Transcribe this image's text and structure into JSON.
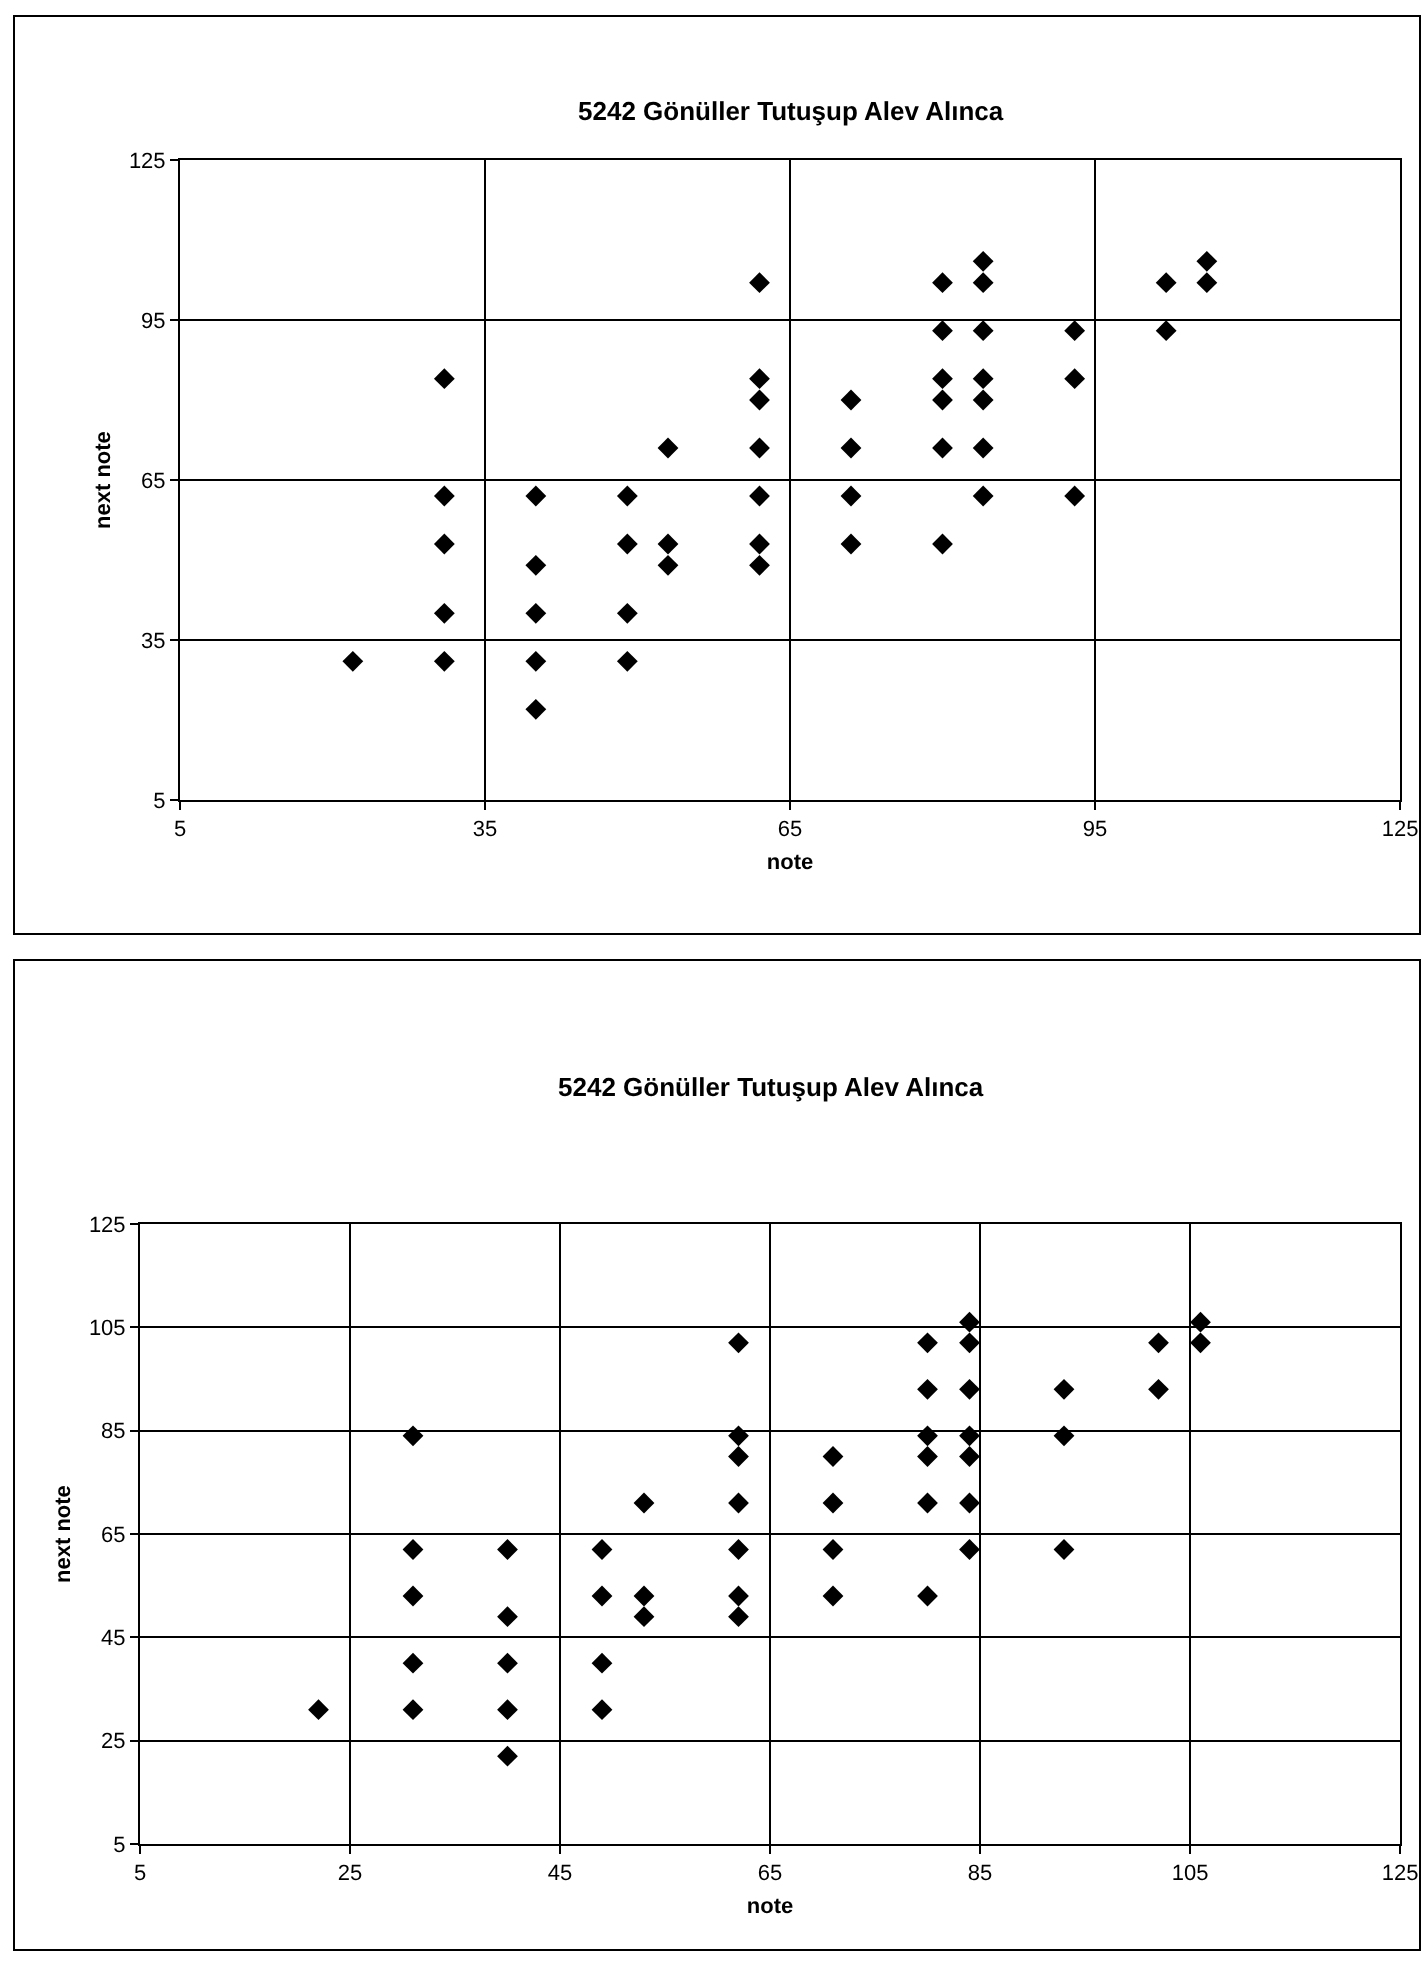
{
  "chart_data": [
    {
      "type": "scatter",
      "title": "5242 Gönüller Tutuşup Alev Alınca",
      "xlabel": "note",
      "ylabel": "next note",
      "xlim": [
        5,
        125
      ],
      "xticks": [
        5,
        35,
        65,
        95,
        125
      ],
      "ylim": [
        5,
        125
      ],
      "yticks": [
        5,
        35,
        65,
        95,
        125
      ],
      "grid": true,
      "marker": "diamond",
      "series": [
        {
          "color": "#000000",
          "x": [
            22,
            31,
            31,
            31,
            31,
            31,
            40,
            40,
            40,
            40,
            40,
            49,
            49,
            49,
            49,
            53,
            53,
            53,
            62,
            62,
            62,
            62,
            62,
            62,
            62,
            71,
            71,
            71,
            71,
            80,
            80,
            80,
            80,
            80,
            80,
            84,
            84,
            84,
            84,
            84,
            84,
            84,
            93,
            93,
            93,
            102,
            102,
            106,
            106
          ],
          "values": [
            31,
            84,
            62,
            53,
            40,
            31,
            62,
            49,
            40,
            31,
            22,
            62,
            53,
            40,
            31,
            71,
            53,
            49,
            102,
            84,
            80,
            71,
            62,
            53,
            49,
            80,
            71,
            62,
            53,
            102,
            93,
            84,
            80,
            71,
            53,
            106,
            102,
            93,
            84,
            80,
            71,
            62,
            93,
            84,
            62,
            102,
            93,
            106,
            102
          ]
        }
      ]
    },
    {
      "type": "scatter",
      "title": "5242 Gönüller Tutuşup Alev Alınca",
      "xlabel": "note",
      "ylabel": "next note",
      "xlim": [
        5,
        125
      ],
      "xticks": [
        5,
        25,
        45,
        65,
        85,
        105,
        125
      ],
      "ylim": [
        5,
        125
      ],
      "yticks": [
        5,
        25,
        45,
        65,
        85,
        105,
        125
      ],
      "grid": true,
      "marker": "diamond",
      "series": [
        {
          "color": "#000000",
          "x": [
            22,
            31,
            31,
            31,
            31,
            31,
            40,
            40,
            40,
            40,
            40,
            49,
            49,
            49,
            49,
            53,
            53,
            53,
            62,
            62,
            62,
            62,
            62,
            62,
            62,
            71,
            71,
            71,
            71,
            80,
            80,
            80,
            80,
            80,
            80,
            84,
            84,
            84,
            84,
            84,
            84,
            84,
            93,
            93,
            93,
            102,
            102,
            106,
            106
          ],
          "values": [
            31,
            84,
            62,
            53,
            40,
            31,
            62,
            49,
            40,
            31,
            22,
            62,
            53,
            40,
            31,
            71,
            53,
            49,
            102,
            84,
            80,
            71,
            62,
            53,
            49,
            80,
            71,
            62,
            53,
            102,
            93,
            84,
            80,
            71,
            53,
            106,
            102,
            93,
            84,
            80,
            71,
            62,
            93,
            84,
            62,
            102,
            93,
            106,
            102
          ]
        }
      ]
    }
  ]
}
